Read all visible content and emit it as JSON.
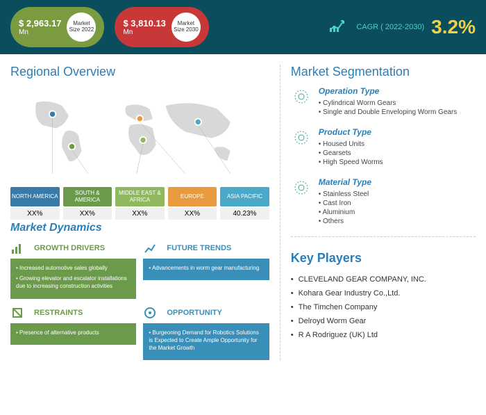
{
  "header": {
    "market_2022": {
      "value": "$ 2,963.17",
      "unit": "Mn",
      "badge": "Market Size 2022",
      "bg": "#7a9b3f"
    },
    "market_2030": {
      "value": "$ 3,810.13",
      "unit": "Mn",
      "badge": "Market Size 2030",
      "bg": "#c83838"
    },
    "cagr_label": "CAGR ( 2022-2030)",
    "cagr_value": "3.2%"
  },
  "regional": {
    "title": "Regional Overview",
    "regions": [
      {
        "name": "NORTH AMERICA",
        "value": "XX%",
        "color": "#3a7aa8"
      },
      {
        "name": "SOUTH & AMERICA",
        "value": "XX%",
        "color": "#6b9b4a"
      },
      {
        "name": "MIDDLE EAST & AFRICA",
        "value": "XX%",
        "color": "#8fb85f"
      },
      {
        "name": "EUROPE",
        "value": "XX%",
        "color": "#e89a3f"
      },
      {
        "name": "ASIA PACIFIC",
        "value": "40.23%",
        "color": "#4aa8c8"
      }
    ]
  },
  "segmentation": {
    "title": "Market Segmentation",
    "groups": [
      {
        "title": "Operation Type",
        "items": [
          "Cylindrical Worm Gears",
          "Single and Double Enveloping Worm Gears"
        ]
      },
      {
        "title": "Product Type",
        "items": [
          "Housed Units",
          "Gearsets",
          "High Speed Worms"
        ]
      },
      {
        "title": "Material Type",
        "items": [
          "Stainless Steel",
          "Cast Iron",
          "Aluminium",
          "Others"
        ]
      }
    ]
  },
  "dynamics": {
    "title": "Market Dynamics",
    "boxes": [
      {
        "title": "GROWTH DRIVERS",
        "title_color": "#6b9b4a",
        "bg": "#6b9b4a",
        "items": [
          "Increased automotive sales globally",
          "Growing elevator and escalator installations due to increasing construction activities"
        ]
      },
      {
        "title": "FUTURE TRENDS",
        "title_color": "#3a8fb8",
        "bg": "#3a8fb8",
        "items": [
          "Advancements in worm gear manufacturing"
        ]
      },
      {
        "title": "RESTRAINTS",
        "title_color": "#6b9b4a",
        "bg": "#6b9b4a",
        "items": [
          "Presence of alternative products"
        ]
      },
      {
        "title": "OPPORTUNITY",
        "title_color": "#3a8fb8",
        "bg": "#3a8fb8",
        "items": [
          "Burgeoning Demand for Robotics Solutions is Expected to Create Ample Opportunity for the Market Growth"
        ]
      }
    ]
  },
  "players": {
    "title": "Key Players",
    "list": [
      "CLEVELAND GEAR COMPANY, INC.",
      "Kohara Gear Industry Co.,Ltd.",
      "The Timchen Company",
      "Delroyd Worm Gear",
      "R A Rodriguez (UK) Ltd"
    ]
  }
}
